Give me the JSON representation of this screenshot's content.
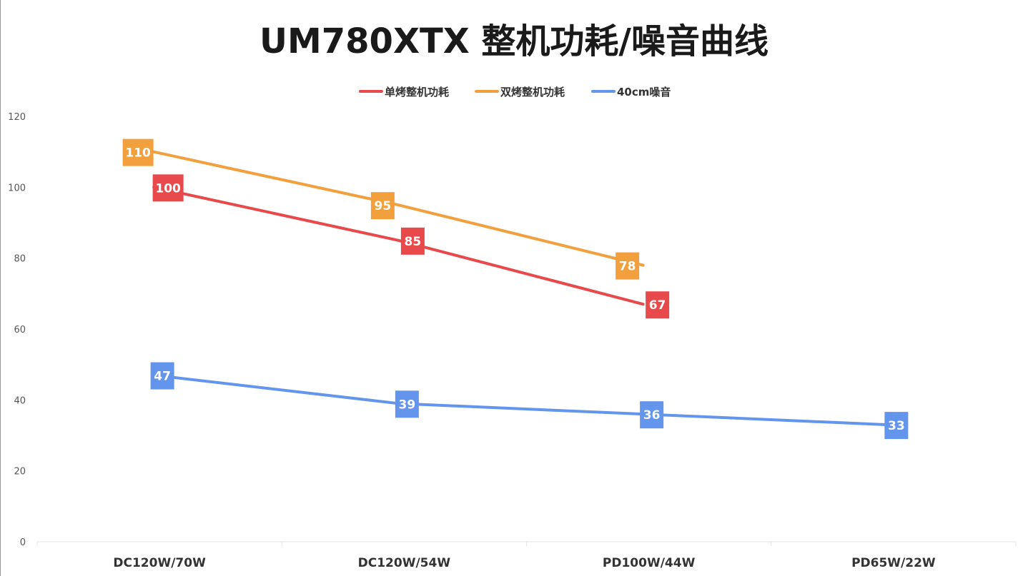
{
  "chart_data": {
    "type": "line",
    "title": "UM780XTX 整机功耗/噪音曲线",
    "categories": [
      "DC120W/70W",
      "DC120W/54W",
      "PD100W/44W",
      "PD65W/22W"
    ],
    "series": [
      {
        "name": "单烤整机功耗",
        "color": "#e8494b",
        "values": [
          100,
          85,
          67,
          null
        ]
      },
      {
        "name": "双烤整机功耗",
        "color": "#f2a03d",
        "values": [
          110,
          95,
          78,
          null
        ]
      },
      {
        "name": "40cm噪音",
        "color": "#6495ed",
        "values": [
          47,
          39,
          36,
          33
        ]
      }
    ],
    "ylim": [
      0,
      120
    ],
    "yticks": [
      0,
      20,
      40,
      60,
      80,
      100,
      120
    ],
    "xlabel": "",
    "ylabel": "",
    "legend_position": "top-center",
    "grid": false,
    "data_labels": true
  }
}
